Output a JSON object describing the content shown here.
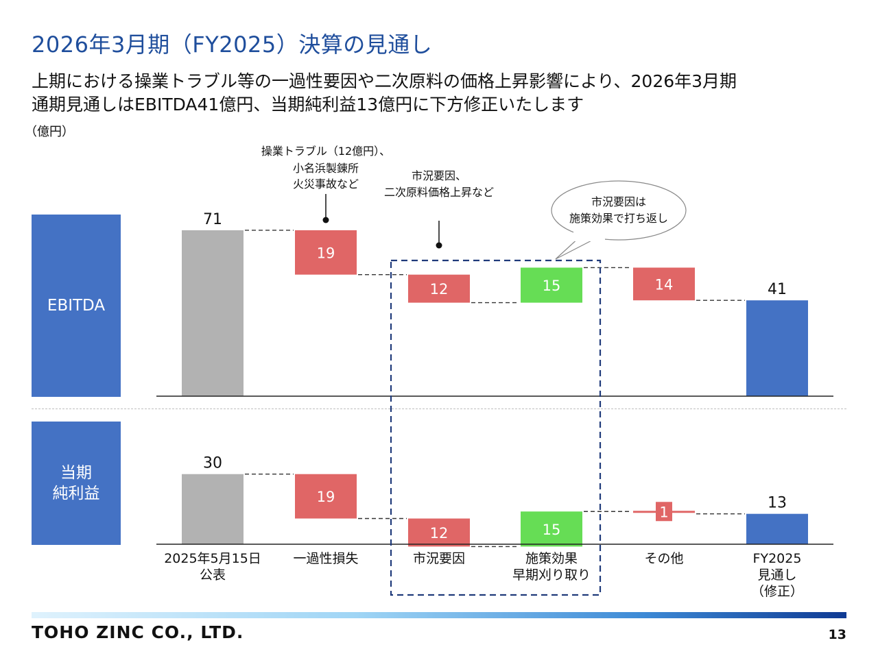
{
  "header": {
    "title": "2026年3月期（FY2025）決算の見通し",
    "subtitle_line1": "上期における操業トラブル等の一過性要因や二次原料の価格上昇影響により、2026年3月期",
    "subtitle_line2": "通期見通しはEBITDA41億円、当期純利益13億円に下方修正いたします",
    "unit": "（億円）"
  },
  "side_labels": {
    "ebitda": "EBITDA",
    "net_line1": "当期",
    "net_line2": "純利益"
  },
  "annotations": {
    "one_off_line1": "操業トラブル（12億円）、",
    "one_off_line2": "小名浜製錬所",
    "one_off_line3": "火災事故など",
    "market_line1": "市況要因、",
    "market_line2": "二次原料価格上昇など",
    "bubble_line1": "市況要因は",
    "bubble_line2": "施策効果で打ち返し"
  },
  "chart_data": [
    {
      "type": "bar",
      "subtype": "waterfall",
      "name": "EBITDA",
      "categories": [
        "2025年5月15日\n公表",
        "一過性損失",
        "市況要因",
        "施策効果\n早期刈り取り",
        "その他",
        "FY2025\n見通し\n（修正）"
      ],
      "values": [
        71,
        -19,
        -12,
        15,
        -14,
        41
      ],
      "kinds": [
        "total",
        "decrease",
        "decrease",
        "increase",
        "decrease",
        "total"
      ],
      "labels": [
        "71",
        "19",
        "12",
        "15",
        "14",
        "41"
      ]
    },
    {
      "type": "bar",
      "subtype": "waterfall",
      "name": "当期純利益",
      "categories": [
        "2025年5月15日\n公表",
        "一過性損失",
        "市況要因",
        "施策効果\n早期刈り取り",
        "その他",
        "FY2025\n見通し\n（修正）"
      ],
      "values": [
        30,
        -19,
        -12,
        15,
        -1,
        13
      ],
      "kinds": [
        "total",
        "decrease",
        "decrease",
        "increase",
        "decrease",
        "total"
      ],
      "labels": [
        "30",
        "19",
        "12",
        "15",
        "1",
        "13"
      ]
    }
  ],
  "categories_display": [
    [
      "2025年5月15日",
      "公表"
    ],
    [
      "一過性損失"
    ],
    [
      "市況要因"
    ],
    [
      "施策効果",
      "早期刈り取り"
    ],
    [
      "その他"
    ],
    [
      "FY2025",
      "見通し",
      "（修正）"
    ]
  ],
  "colors": {
    "start_total": "#b2b2b2",
    "decrease": "#e06666",
    "increase": "#66dd55",
    "end_total": "#4472c4",
    "title": "#1f4e9c",
    "highlight_dash": "#1f3a7a"
  },
  "footer": {
    "company": "TOHO ZINC CO., LTD.",
    "page": "13"
  }
}
